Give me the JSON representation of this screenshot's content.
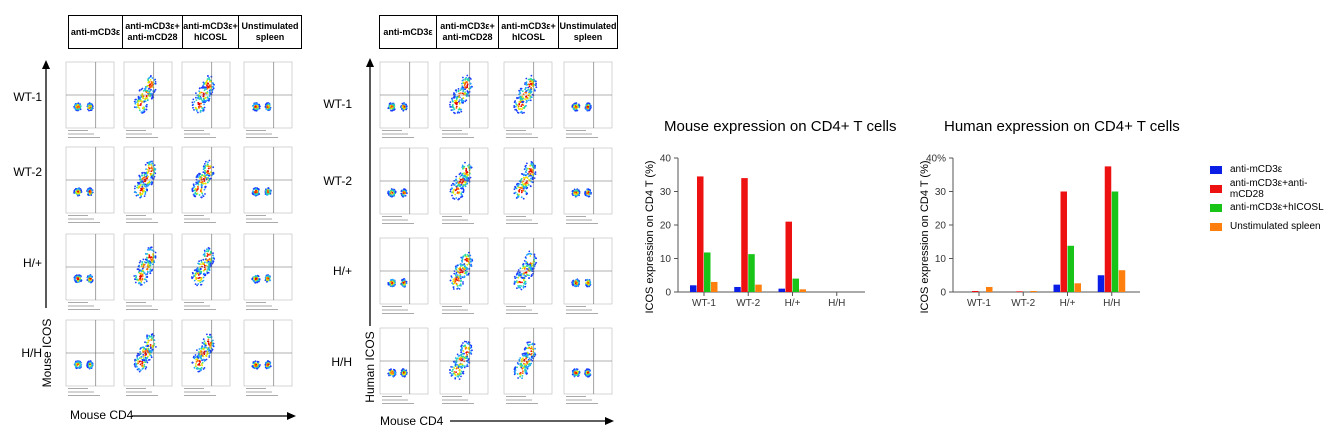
{
  "colors": {
    "anti_mCD3e": "#0a1ee6",
    "anti_mCD3e_anti_mCD28": "#ee1111",
    "anti_mCD3e_hICOSL": "#19c419",
    "unstimulated_spleen": "#ff7f0e"
  },
  "flow_panel_left": {
    "columns": [
      "anti-mCD3ε",
      "anti-mCD3ε+\nanti-mCD28",
      "anti-mCD3ε+\nhICOSL",
      "Unstimulated\nspleen"
    ],
    "rows": [
      "WT-1",
      "WT-2",
      "H/+",
      "H/H"
    ],
    "y_axis_title": "Mouse ICOS",
    "x_axis_title": "Mouse CD4"
  },
  "flow_panel_right": {
    "columns": [
      "anti-mCD3ε",
      "anti-mCD3ε+\nanti-mCD28",
      "anti-mCD3ε+\nhICOSL",
      "Unstimulated\nspleen"
    ],
    "rows": [
      "WT-1",
      "WT-2",
      "H/+",
      "H/H"
    ],
    "y_axis_title": "Human ICOS",
    "x_axis_title": "Mouse CD4"
  },
  "chart_data": [
    {
      "type": "bar",
      "title": "Mouse expression on CD4+ T cells",
      "xlabel": "",
      "ylabel": "ICOS expression on CD4 T (%)",
      "categories": [
        "WT-1",
        "WT-2",
        "H/+",
        "H/H"
      ],
      "ylim": [
        0,
        40
      ],
      "yticks": [
        0,
        10,
        20,
        30,
        40
      ],
      "ytick_labels": [
        "0",
        "10",
        "20",
        "30",
        "40"
      ],
      "grid": false,
      "series": [
        {
          "name": "anti-mCD3ε",
          "values": [
            2,
            1.5,
            1,
            0
          ]
        },
        {
          "name": "anti-mCD3ε+anti-mCD28",
          "values": [
            34.5,
            34,
            21,
            0
          ]
        },
        {
          "name": "anti-mCD3ε+hICOSL",
          "values": [
            11.8,
            11.3,
            4,
            0
          ]
        },
        {
          "name": "Unstimulated spleen",
          "values": [
            3,
            2.2,
            0.8,
            0
          ]
        }
      ]
    },
    {
      "type": "bar",
      "title": "Human expression on CD4+ T cells",
      "xlabel": "",
      "ylabel": "ICOS expression on CD4 T (%)",
      "categories": [
        "WT-1",
        "WT-2",
        "H/+",
        "H/H"
      ],
      "ylim": [
        0,
        40
      ],
      "yticks": [
        0,
        10,
        20,
        30,
        40
      ],
      "ytick_labels": [
        "0",
        "10",
        "20",
        "30",
        "40%"
      ],
      "grid": false,
      "legend_position": "right",
      "series": [
        {
          "name": "anti-mCD3ε",
          "values": [
            0,
            0,
            2.2,
            5
          ]
        },
        {
          "name": "anti-mCD3ε+anti-mCD28",
          "values": [
            0.3,
            0.2,
            30,
            37.5
          ]
        },
        {
          "name": "anti-mCD3ε+hICOSL",
          "values": [
            0,
            0,
            13.8,
            30
          ]
        },
        {
          "name": "Unstimulated spleen",
          "values": [
            1.5,
            0.3,
            2.6,
            6.5
          ]
        }
      ]
    }
  ],
  "legend": [
    {
      "label": "anti-mCD3ε",
      "color": "#0a1ee6"
    },
    {
      "label": "anti-mCD3ε+anti-mCD28",
      "color": "#ee1111"
    },
    {
      "label": "anti-mCD3ε+hICOSL",
      "color": "#19c419"
    },
    {
      "label": "Unstimulated spleen",
      "color": "#ff7f0e"
    }
  ]
}
